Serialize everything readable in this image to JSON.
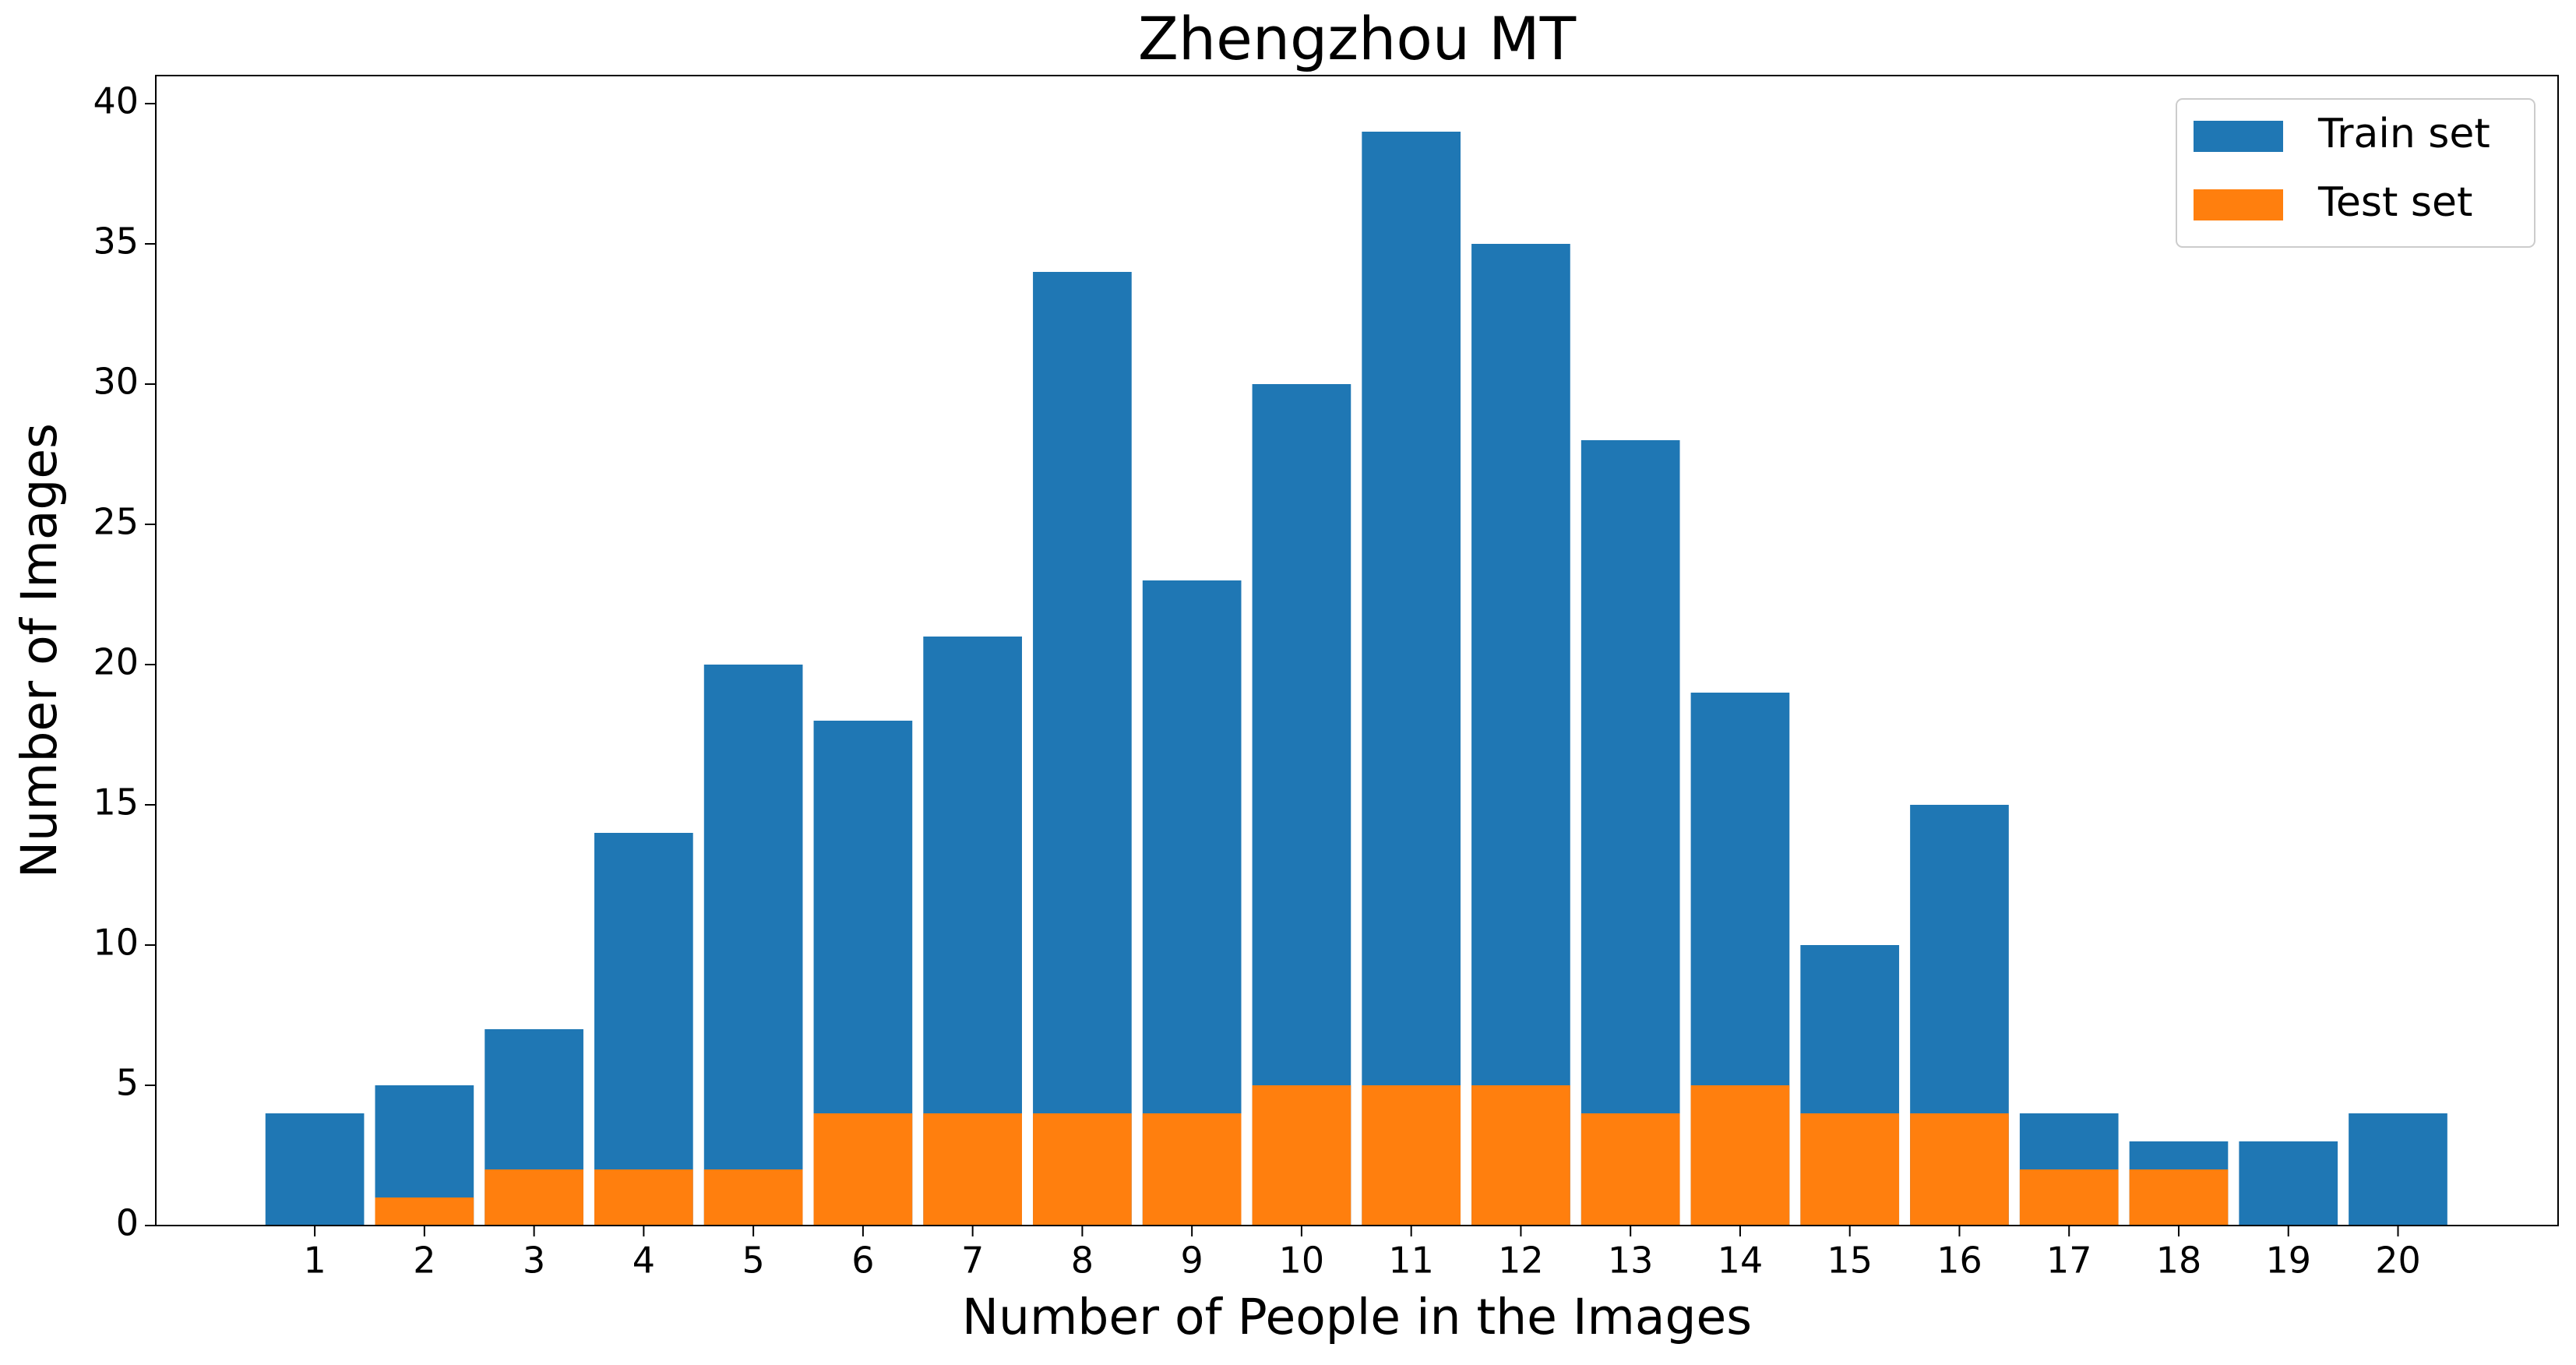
{
  "chart_data": {
    "type": "bar",
    "title": "Zhengzhou MT",
    "x_label": "Number of People in the Images",
    "y_label": "Number of Images",
    "categories": [
      "1",
      "2",
      "3",
      "4",
      "5",
      "6",
      "7",
      "8",
      "9",
      "10",
      "11",
      "12",
      "13",
      "14",
      "15",
      "16",
      "17",
      "18",
      "19",
      "20"
    ],
    "series": [
      {
        "name": "Train set",
        "color": "#1f77b4",
        "values": [
          4,
          5,
          7,
          14,
          20,
          18,
          21,
          34,
          23,
          30,
          39,
          35,
          28,
          19,
          10,
          15,
          4,
          3,
          3,
          4
        ]
      },
      {
        "name": "Test set",
        "color": "#ff7f0e",
        "values": [
          0,
          1,
          2,
          2,
          2,
          4,
          4,
          4,
          4,
          5,
          5,
          5,
          4,
          5,
          4,
          4,
          2,
          2,
          0,
          0
        ]
      }
    ],
    "ylim": [
      0,
      41
    ],
    "yticks": [
      0,
      5,
      10,
      15,
      20,
      25,
      30,
      35,
      40
    ],
    "legend": "upper right"
  }
}
